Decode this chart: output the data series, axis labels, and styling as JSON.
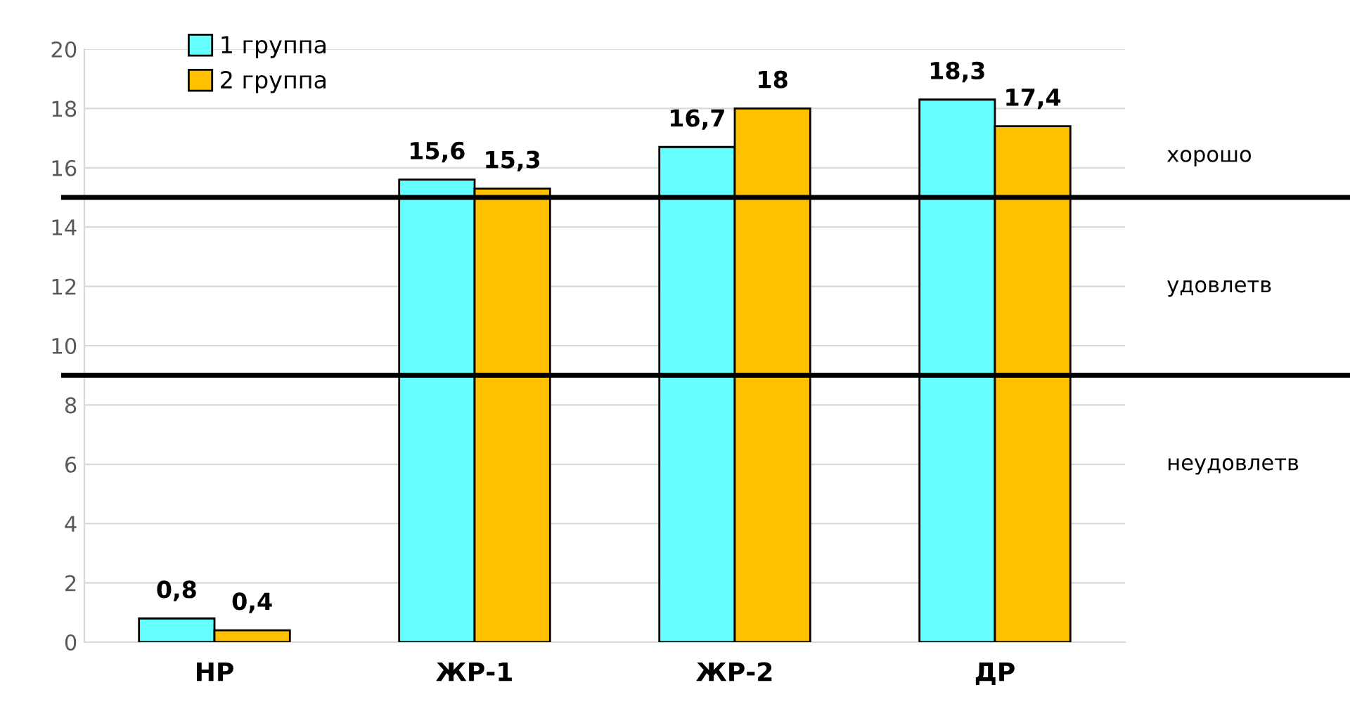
{
  "chart_data": {
    "type": "bar",
    "categories": [
      "НР",
      "ЖР-1",
      "ЖР-2",
      "ДР"
    ],
    "series": [
      {
        "name": "1 группа",
        "color": "#66ffff",
        "values": [
          0.8,
          15.6,
          16.7,
          18.3
        ],
        "value_labels": [
          "0,8",
          "15,6",
          "16,7",
          "18,3"
        ]
      },
      {
        "name": "2 группа",
        "color": "#ffc000",
        "values": [
          0.4,
          15.3,
          18,
          17.4
        ],
        "value_labels": [
          "0,4",
          "15,3",
          "18",
          "17,4"
        ]
      }
    ],
    "ylim": [
      0,
      20
    ],
    "yticks": [
      0,
      2,
      4,
      6,
      8,
      10,
      12,
      14,
      16,
      18,
      20
    ],
    "grid": "y",
    "legend": "top left",
    "ref_lines": [
      {
        "axis": "y",
        "value": 15,
        "color": "#000000"
      },
      {
        "axis": "y",
        "value": 9,
        "color": "#000000"
      }
    ],
    "annotations": [
      "хорошо",
      "удовлетв",
      "неудовлетв"
    ]
  }
}
